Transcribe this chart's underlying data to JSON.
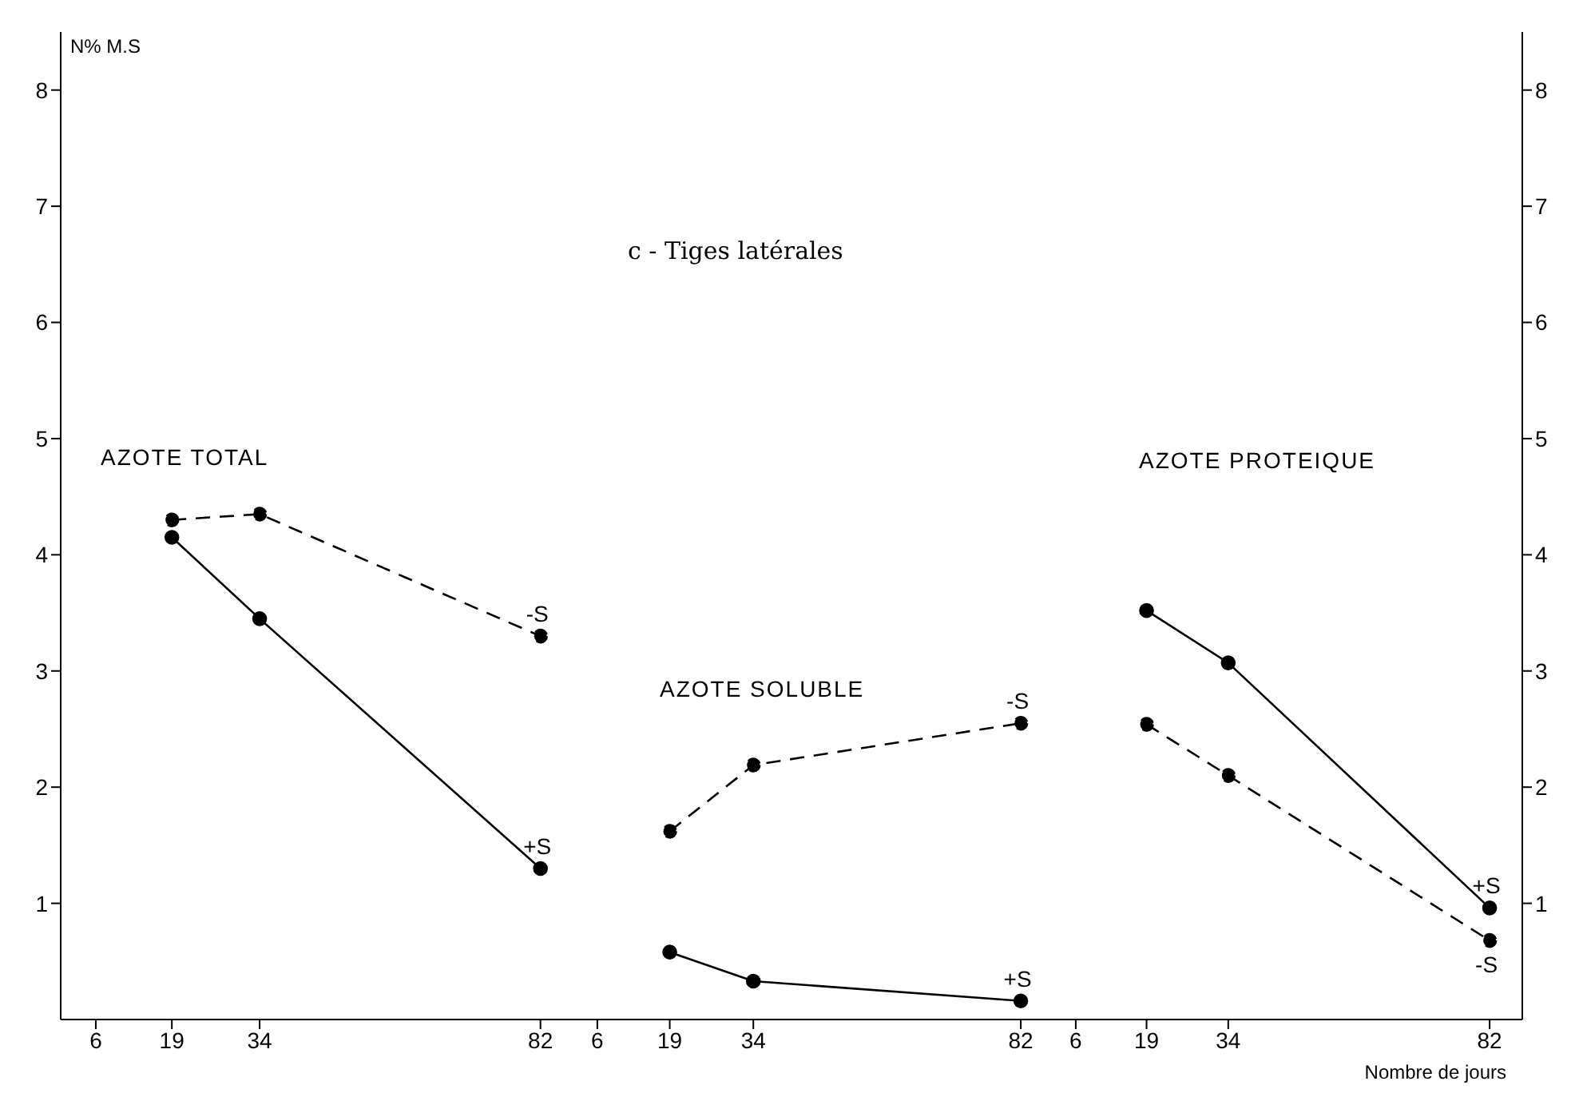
{
  "chart_data": [
    {
      "type": "line",
      "title": "AZOTE TOTAL",
      "ylabel": "N% M.S",
      "x": [
        19,
        34,
        82
      ],
      "xlim": [
        0,
        86
      ],
      "xticks": [
        6,
        19,
        34,
        82
      ],
      "ylim": [
        0,
        8.5
      ],
      "yticks": [
        1,
        2,
        3,
        4,
        5,
        6,
        7,
        8
      ],
      "grid": false,
      "legend": false,
      "marker": "circle",
      "series": [
        {
          "name": "-S",
          "color": "#000000",
          "line_style": "dashed",
          "values": [
            4.3,
            4.35,
            3.3
          ]
        },
        {
          "name": "+S",
          "color": "#000000",
          "line_style": "solid",
          "values": [
            4.15,
            3.45,
            1.3
          ]
        }
      ]
    },
    {
      "type": "line",
      "title": "AZOTE SOLUBLE",
      "annotations": [
        "c - Tiges latérales"
      ],
      "x": [
        19,
        34,
        82
      ],
      "xlim": [
        0,
        86
      ],
      "xticks": [
        6,
        19,
        34,
        82
      ],
      "ylim": [
        0,
        8
      ],
      "yticks": [
        1,
        2,
        3,
        4,
        5,
        6,
        7,
        8
      ],
      "tick_labels": "x",
      "grid": false,
      "legend": false,
      "marker": "circle",
      "series": [
        {
          "name": "-S",
          "color": "#000000",
          "line_style": "dashed",
          "values": [
            1.62,
            2.19,
            2.55
          ]
        },
        {
          "name": "+S",
          "color": "#000000",
          "line_style": "solid",
          "values": [
            0.58,
            0.33,
            0.16
          ]
        }
      ]
    },
    {
      "type": "line",
      "title": "AZOTE PROTEIQUE",
      "xlabel": "Nombre de jours",
      "x": [
        19,
        34,
        82
      ],
      "xlim": [
        0,
        88
      ],
      "xticks": [
        6,
        19,
        34,
        82
      ],
      "y2lim": [
        0,
        8.5
      ],
      "y2ticks": [
        1,
        2,
        3,
        4,
        5,
        6,
        7,
        8
      ],
      "grid": false,
      "legend": false,
      "marker": "circle",
      "series": [
        {
          "name": "+S",
          "color": "#000000",
          "line_style": "solid",
          "axis": "y2",
          "values": [
            3.52,
            3.07,
            0.96
          ]
        },
        {
          "name": "-S",
          "color": "#000000",
          "line_style": "dashed",
          "axis": "y2",
          "values": [
            2.54,
            2.1,
            0.68
          ]
        }
      ]
    }
  ]
}
